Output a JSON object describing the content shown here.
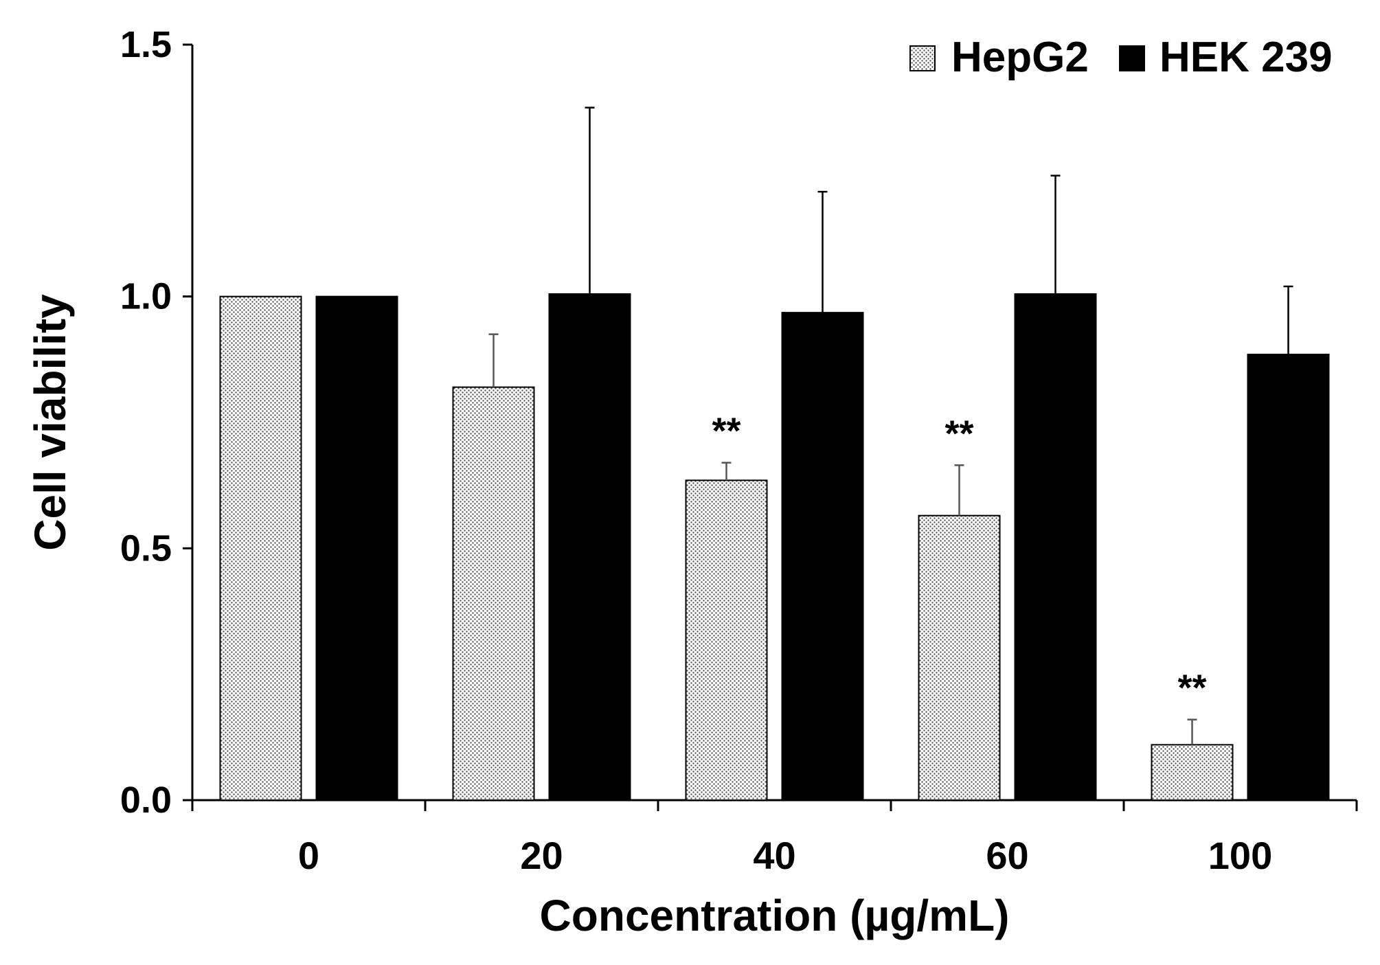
{
  "chart_data": {
    "type": "bar",
    "categories": [
      "0",
      "20",
      "40",
      "60",
      "100"
    ],
    "xlabel": "Concentration (µg/mL)",
    "ylabel": "Cell viability",
    "ylim": [
      0,
      1.5
    ],
    "yticks": [
      "0.0",
      "0.5",
      "1.0",
      "1.5"
    ],
    "grid": false,
    "legend_position": "top-right",
    "series": [
      {
        "name": "HepG2",
        "pattern": "dotted",
        "fill_color": "#ffffff",
        "dot_color": "#555555",
        "values": [
          1.0,
          0.82,
          0.635,
          0.565,
          0.11
        ],
        "errors": [
          0.0,
          0.105,
          0.035,
          0.1,
          0.05
        ],
        "significance": [
          "",
          "",
          "**",
          "**",
          "**"
        ]
      },
      {
        "name": "HEK 239",
        "pattern": "solid",
        "fill_color": "#000000",
        "values": [
          1.0,
          1.005,
          0.968,
          1.005,
          0.885
        ],
        "errors": [
          0.0,
          0.37,
          0.24,
          0.235,
          0.135
        ],
        "significance": [
          "",
          "",
          "",
          "",
          ""
        ]
      }
    ]
  }
}
